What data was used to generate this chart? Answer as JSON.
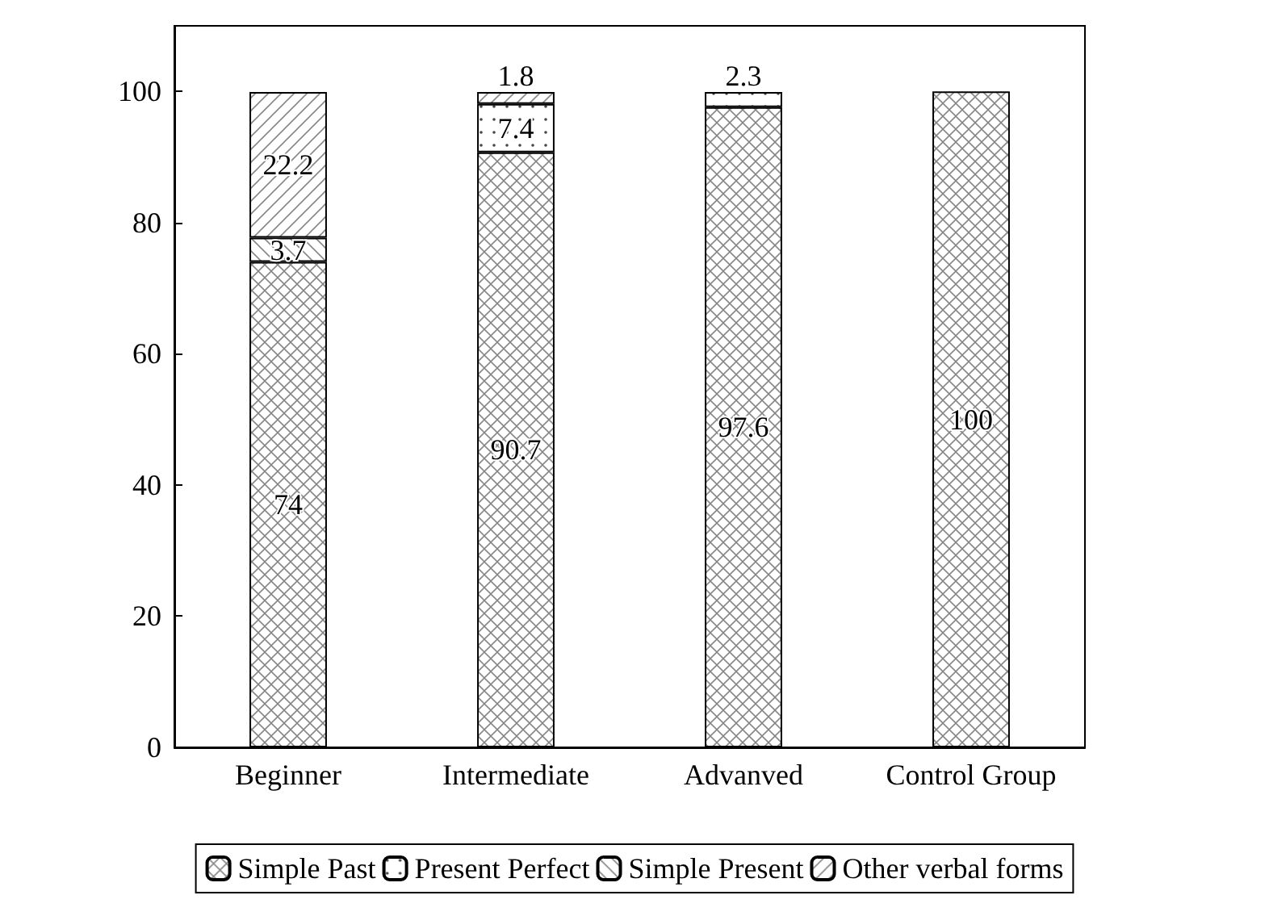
{
  "chart_data": {
    "type": "bar",
    "stacked": true,
    "categories": [
      "Beginner",
      "Intermediate",
      "Advanved",
      "Control Group"
    ],
    "series": [
      {
        "name": "Simple Past",
        "values": [
          74,
          90.7,
          97.6,
          100
        ]
      },
      {
        "name": "Present Perfect",
        "values": [
          null,
          7.4,
          2.3,
          null
        ]
      },
      {
        "name": "Simple Present",
        "values": [
          3.7,
          null,
          null,
          null
        ]
      },
      {
        "name": "Other verbal forms",
        "values": [
          22.2,
          1.8,
          null,
          null
        ]
      }
    ],
    "ylim": [
      0,
      110
    ],
    "yticks": [
      0,
      20,
      40,
      60,
      80,
      100
    ],
    "grid": false,
    "legend": "bottom",
    "data_labels": true
  }
}
